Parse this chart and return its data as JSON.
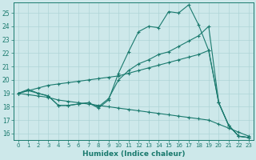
{
  "xlabel": "Humidex (Indice chaleur)",
  "background_color": "#cde8ea",
  "grid_color": "#aed4d6",
  "line_color": "#1a7a6e",
  "xlim": [
    -0.5,
    23.5
  ],
  "ylim": [
    15.5,
    25.8
  ],
  "yticks": [
    16,
    17,
    18,
    19,
    20,
    21,
    22,
    23,
    24,
    25
  ],
  "xticks": [
    0,
    1,
    2,
    3,
    4,
    5,
    6,
    7,
    8,
    9,
    10,
    11,
    12,
    13,
    14,
    15,
    16,
    17,
    18,
    19,
    20,
    21,
    22,
    23
  ],
  "line1_x": [
    0,
    1,
    2,
    3,
    4,
    5,
    6,
    7,
    8,
    9,
    10,
    11,
    12,
    13,
    14,
    15,
    16,
    17,
    18,
    19,
    20,
    21,
    22,
    23
  ],
  "line1_y": [
    19.0,
    19.2,
    19.0,
    18.8,
    18.1,
    18.1,
    18.2,
    18.3,
    17.9,
    18.5,
    20.5,
    22.1,
    23.6,
    24.0,
    23.9,
    25.1,
    25.0,
    25.6,
    24.1,
    22.2,
    18.3,
    16.6,
    15.8,
    15.7
  ],
  "line2_x": [
    0,
    1,
    2,
    3,
    4,
    5,
    6,
    7,
    8,
    9,
    10,
    11,
    12,
    13,
    14,
    15,
    16,
    17,
    18,
    19,
    20,
    21,
    22,
    23
  ],
  "line2_y": [
    19.0,
    19.3,
    19.0,
    18.8,
    18.1,
    18.1,
    18.2,
    18.3,
    18.0,
    18.6,
    20.0,
    20.7,
    21.2,
    21.5,
    21.9,
    22.1,
    22.5,
    22.9,
    23.3,
    24.0,
    18.3,
    16.6,
    15.8,
    15.7
  ],
  "line3_x": [
    0,
    1,
    2,
    3,
    4,
    5,
    6,
    7,
    8,
    9,
    10,
    11,
    12,
    13,
    14,
    15,
    16,
    17,
    18,
    19,
    20,
    21,
    22,
    23
  ],
  "line3_y": [
    19.0,
    19.2,
    19.4,
    19.6,
    19.7,
    19.8,
    19.9,
    20.0,
    20.1,
    20.2,
    20.3,
    20.5,
    20.7,
    20.9,
    21.1,
    21.3,
    21.5,
    21.7,
    21.9,
    22.2,
    18.3,
    16.6,
    15.8,
    15.7
  ],
  "line4_x": [
    0,
    1,
    2,
    3,
    4,
    5,
    6,
    7,
    8,
    9,
    10,
    11,
    12,
    13,
    14,
    15,
    16,
    17,
    18,
    19,
    20,
    21,
    22,
    23
  ],
  "line4_y": [
    19.0,
    18.9,
    18.8,
    18.7,
    18.5,
    18.4,
    18.3,
    18.2,
    18.1,
    18.0,
    17.9,
    17.8,
    17.7,
    17.6,
    17.5,
    17.4,
    17.3,
    17.2,
    17.1,
    17.0,
    16.7,
    16.4,
    16.1,
    15.8
  ]
}
